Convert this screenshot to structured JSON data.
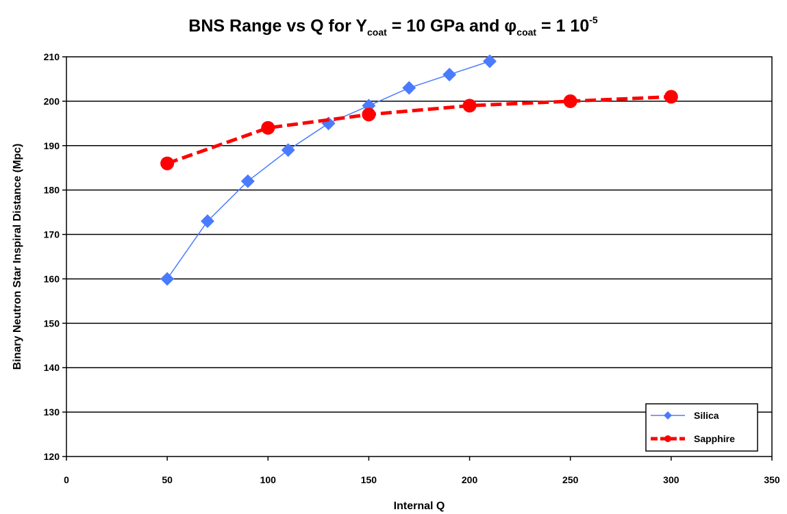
{
  "chart_data": {
    "type": "line",
    "title": {
      "prefix": "BNS Range vs Q for Y",
      "sub1": "coat",
      "middle": " = 10 GPa and ",
      "phi": "φ",
      "sub2": "coat",
      "suffix": " = 1 10",
      "sup": "-5"
    },
    "xlabel": "Internal Q",
    "ylabel": "Binary Neutron Star Inspiral Distance (Mpc)",
    "xlim": [
      0,
      350
    ],
    "ylim": [
      120,
      210
    ],
    "xticks": [
      0,
      50,
      100,
      150,
      200,
      250,
      300,
      350
    ],
    "yticks": [
      120,
      130,
      140,
      150,
      160,
      170,
      180,
      190,
      200,
      210
    ],
    "grid": "horizontal major gridlines",
    "legend_position": "bottom-right",
    "series": [
      {
        "name": "Silica",
        "color": "#4a7bff",
        "marker": "diamond",
        "line_style": "solid",
        "x": [
          50,
          70,
          90,
          110,
          130,
          150,
          170,
          190,
          210
        ],
        "y": [
          160,
          173,
          182,
          189,
          195,
          199,
          203,
          206,
          209
        ]
      },
      {
        "name": "Sapphire",
        "color": "#ff0000",
        "marker": "circle",
        "line_style": "dashed",
        "x": [
          50,
          100,
          150,
          200,
          250,
          300
        ],
        "y": [
          186,
          194,
          197,
          199,
          200,
          201
        ]
      }
    ]
  }
}
